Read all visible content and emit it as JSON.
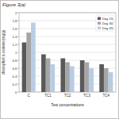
{
  "chart_data": {
    "type": "bar",
    "title": "Figure 3(a)",
    "x_label": "Test concentrations",
    "y_label": "chlorophyll a content (mg/g)",
    "categories": [
      "C",
      "TC1",
      "TC2",
      "TC3",
      "TC4"
    ],
    "series": [
      {
        "name": "Day 15",
        "color": "#595959",
        "values": [
          1.25,
          0.95,
          0.85,
          0.8,
          0.7
        ]
      },
      {
        "name": "Day 30",
        "color": "#a6a6a6",
        "values": [
          1.5,
          0.85,
          0.75,
          0.75,
          0.6
        ]
      },
      {
        "name": "Day 45",
        "color": "#b8cce4",
        "values": [
          1.75,
          0.7,
          0.65,
          0.6,
          0.5
        ]
      }
    ],
    "ylim": [
      0,
      2
    ],
    "yticks": [
      0,
      0.2,
      0.4,
      0.6,
      0.8,
      1,
      1.2,
      1.4,
      1.6,
      1.8,
      2
    ],
    "grid": true,
    "legend": "upper right"
  }
}
